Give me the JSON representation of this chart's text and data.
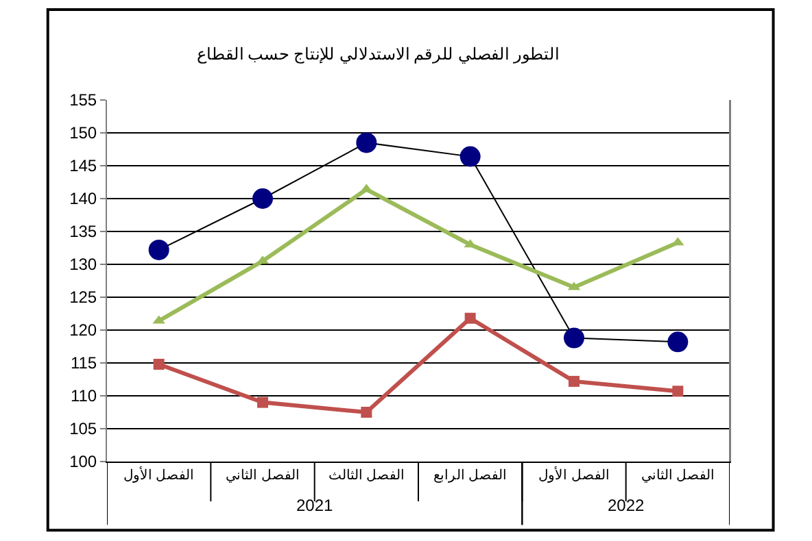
{
  "chart_data": {
    "type": "line",
    "title": "التطور الفصلي للرقم الاستدلالي للإنتاج حسب القطاع",
    "categories": [
      "الفصل الأول",
      "الفصل الثاني",
      "الفصل الثالث",
      "الفصل الرابع",
      "الفصل الأول",
      "الفصل الثاني"
    ],
    "series": [
      {
        "color": "#000080",
        "marker": "circle",
        "values": [
          132.2,
          140.0,
          148.5,
          146.4,
          118.8,
          118.2
        ]
      },
      {
        "color": "#9bbb59",
        "marker": "triangle",
        "values": [
          121.4,
          130.5,
          141.4,
          133.0,
          126.5,
          133.3
        ]
      },
      {
        "color": "#c0504d",
        "marker": "square",
        "values": [
          114.8,
          109.0,
          107.5,
          121.8,
          112.2,
          110.7
        ]
      }
    ],
    "annotations": [
      "2021",
      "2022"
    ],
    "ylim": [
      100,
      155
    ],
    "yticks": [
      100,
      105,
      110,
      115,
      120,
      125,
      130,
      135,
      140,
      145,
      150,
      155
    ],
    "grid": "y"
  }
}
